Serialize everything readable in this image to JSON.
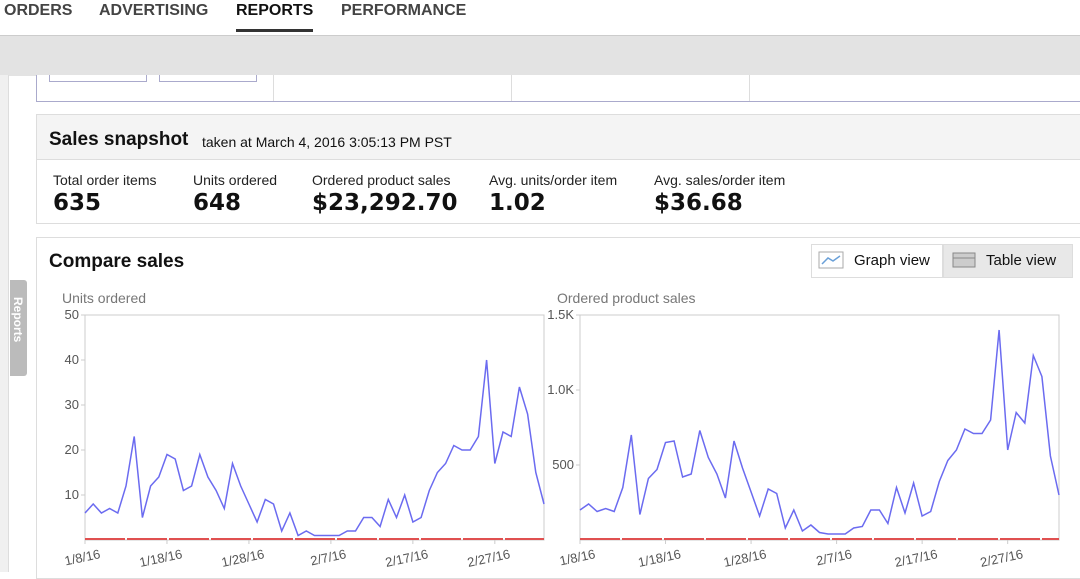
{
  "nav": {
    "tabs": [
      "ORDERS",
      "ADVERTISING",
      "REPORTS",
      "PERFORMANCE"
    ],
    "active": 2
  },
  "side_tab": "Reports",
  "snapshot": {
    "title": "Sales snapshot",
    "taken": "taken at March 4, 2016 3:05:13 PM PST",
    "metrics": [
      {
        "label": "Total order items",
        "value": 635
      },
      {
        "label": "Units ordered",
        "value": 648
      },
      {
        "label": "Ordered product sales",
        "value": "$23,292.70"
      },
      {
        "label": "Avg. units/order item",
        "value": 1.02
      },
      {
        "label": "Avg. sales/order item",
        "value": "$36.68"
      }
    ]
  },
  "compare": {
    "title": "Compare sales",
    "buttons": [
      "Graph view",
      "Table view"
    ],
    "charts": [
      {
        "type": "line",
        "y_label": "Units ordered",
        "color": "#6b6bf0",
        "x": [
          "2016-01-08",
          "2016-01-09",
          "2016-01-10",
          "2016-01-11",
          "2016-01-12",
          "2016-01-13",
          "2016-01-14",
          "2016-01-15",
          "2016-01-16",
          "2016-01-17",
          "2016-01-18",
          "2016-01-19",
          "2016-01-20",
          "2016-01-21",
          "2016-01-22",
          "2016-01-23",
          "2016-01-24",
          "2016-01-25",
          "2016-01-26",
          "2016-01-27",
          "2016-01-28",
          "2016-01-29",
          "2016-01-30",
          "2016-01-31",
          "2016-02-01",
          "2016-02-02",
          "2016-02-03",
          "2016-02-04",
          "2016-02-05",
          "2016-02-06",
          "2016-02-07",
          "2016-02-08",
          "2016-02-09",
          "2016-02-10",
          "2016-02-11",
          "2016-02-12",
          "2016-02-13",
          "2016-02-14",
          "2016-02-15",
          "2016-02-16",
          "2016-02-17",
          "2016-02-18",
          "2016-02-19",
          "2016-02-20",
          "2016-02-21",
          "2016-02-22",
          "2016-02-23",
          "2016-02-24",
          "2016-02-25",
          "2016-02-26",
          "2016-02-27",
          "2016-02-28",
          "2016-02-29",
          "2016-03-01",
          "2016-03-02",
          "2016-03-03",
          "2016-03-04"
        ],
        "values": [
          6,
          8,
          6,
          7,
          6,
          12,
          23,
          5,
          12,
          14,
          19,
          18,
          11,
          12,
          19,
          14,
          11,
          7,
          17,
          12,
          8,
          4,
          9,
          8,
          2,
          6,
          1,
          2,
          1,
          1,
          1,
          1,
          2,
          2,
          5,
          5,
          3,
          9,
          5,
          10,
          4,
          5,
          11,
          15,
          17,
          21,
          20,
          20,
          23,
          40,
          17,
          24,
          23,
          34,
          28,
          15,
          8
        ],
        "xlim": [
          "2016-01-08",
          "2016-03-04"
        ],
        "xticks": [
          {
            "value": "2016-01-08",
            "label": "1/8/16"
          },
          {
            "value": "2016-01-18",
            "label": "1/18/16"
          },
          {
            "value": "2016-01-28",
            "label": "1/28/16"
          },
          {
            "value": "2016-02-07",
            "label": "2/7/16"
          },
          {
            "value": "2016-02-17",
            "label": "2/17/16"
          },
          {
            "value": "2016-02-27",
            "label": "2/27/16"
          }
        ],
        "ylim": [
          0,
          50
        ],
        "yticks": [
          10,
          20,
          30,
          40,
          50
        ]
      },
      {
        "type": "line",
        "y_label": "Ordered product sales",
        "color": "#6b6bf0",
        "x": [
          "2016-01-08",
          "2016-01-09",
          "2016-01-10",
          "2016-01-11",
          "2016-01-12",
          "2016-01-13",
          "2016-01-14",
          "2016-01-15",
          "2016-01-16",
          "2016-01-17",
          "2016-01-18",
          "2016-01-19",
          "2016-01-20",
          "2016-01-21",
          "2016-01-22",
          "2016-01-23",
          "2016-01-24",
          "2016-01-25",
          "2016-01-26",
          "2016-01-27",
          "2016-01-28",
          "2016-01-29",
          "2016-01-30",
          "2016-01-31",
          "2016-02-01",
          "2016-02-02",
          "2016-02-03",
          "2016-02-04",
          "2016-02-05",
          "2016-02-06",
          "2016-02-07",
          "2016-02-08",
          "2016-02-09",
          "2016-02-10",
          "2016-02-11",
          "2016-02-12",
          "2016-02-13",
          "2016-02-14",
          "2016-02-15",
          "2016-02-16",
          "2016-02-17",
          "2016-02-18",
          "2016-02-19",
          "2016-02-20",
          "2016-02-21",
          "2016-02-22",
          "2016-02-23",
          "2016-02-24",
          "2016-02-25",
          "2016-02-26",
          "2016-02-27",
          "2016-02-28",
          "2016-02-29",
          "2016-03-01",
          "2016-03-02",
          "2016-03-03",
          "2016-03-04"
        ],
        "values": [
          200,
          240,
          190,
          210,
          190,
          350,
          700,
          170,
          410,
          470,
          650,
          660,
          420,
          440,
          730,
          550,
          440,
          280,
          660,
          480,
          320,
          160,
          340,
          310,
          80,
          200,
          60,
          100,
          50,
          40,
          40,
          40,
          80,
          90,
          200,
          200,
          110,
          350,
          180,
          380,
          160,
          190,
          390,
          530,
          600,
          740,
          710,
          710,
          800,
          1400,
          600,
          850,
          780,
          1230,
          1090,
          560,
          300
        ],
        "xlim": [
          "2016-01-08",
          "2016-03-04"
        ],
        "xticks": [
          {
            "value": "2016-01-08",
            "label": "1/8/16"
          },
          {
            "value": "2016-01-18",
            "label": "1/18/16"
          },
          {
            "value": "2016-01-28",
            "label": "1/28/16"
          },
          {
            "value": "2016-02-07",
            "label": "2/7/16"
          },
          {
            "value": "2016-02-17",
            "label": "2/17/16"
          },
          {
            "value": "2016-02-27",
            "label": "2/27/16"
          }
        ],
        "ylim": [
          0,
          1500
        ],
        "yticks": [
          500,
          {
            "value": 1000,
            "label": "1.0K"
          },
          {
            "value": 1500,
            "label": "1.5K"
          }
        ]
      }
    ]
  }
}
